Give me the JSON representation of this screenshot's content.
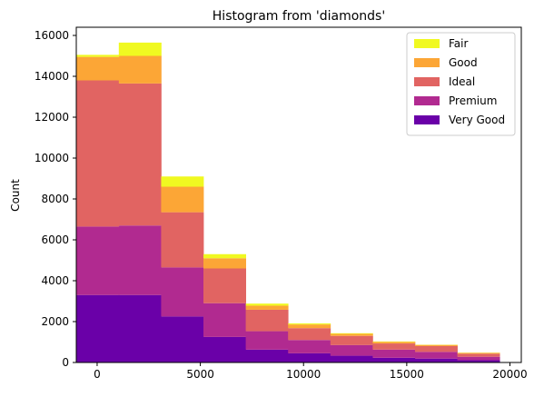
{
  "chart_data": {
    "type": "bar",
    "stacked": true,
    "title": "Histogram from 'diamonds'",
    "xlabel": "",
    "ylabel": "Count",
    "xlim": [
      -1010,
      20550
    ],
    "ylim": [
      0,
      16400
    ],
    "xticks": [
      0,
      5000,
      10000,
      15000,
      20000
    ],
    "yticks": [
      0,
      2000,
      4000,
      6000,
      8000,
      10000,
      12000,
      14000,
      16000
    ],
    "grid": false,
    "legend_position": "top-right",
    "bin_edges": [
      -1000,
      1050,
      3100,
      5150,
      7200,
      9250,
      11300,
      13350,
      15400,
      17450,
      19500
    ],
    "series": [
      {
        "name": "Very Good",
        "color": "#6a00a8",
        "values": [
          3300,
          3300,
          2250,
          1250,
          630,
          450,
          330,
          230,
          190,
          110
        ]
      },
      {
        "name": "Premium",
        "color": "#b12a90",
        "values": [
          3350,
          3400,
          2400,
          1650,
          900,
          650,
          520,
          400,
          330,
          170
        ]
      },
      {
        "name": "Ideal",
        "color": "#e16462",
        "values": [
          7150,
          6950,
          2700,
          1700,
          1050,
          580,
          450,
          300,
          280,
          150
        ]
      },
      {
        "name": "Good",
        "color": "#fca636",
        "values": [
          1150,
          1350,
          1250,
          500,
          200,
          180,
          100,
          80,
          60,
          40
        ]
      },
      {
        "name": "Fair",
        "color": "#f0f921",
        "values": [
          100,
          650,
          500,
          200,
          100,
          50,
          30,
          20,
          10,
          10
        ]
      }
    ]
  }
}
